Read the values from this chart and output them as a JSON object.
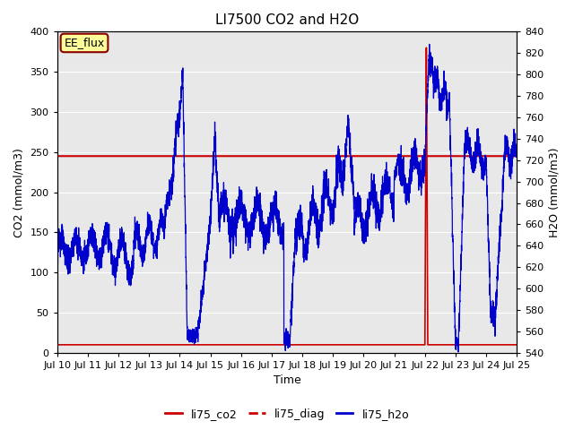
{
  "title": "LI7500 CO2 and H2O",
  "xlabel": "Time",
  "ylabel_left": "CO2 (mmol/m3)",
  "ylabel_right": "H2O (mmol/m3)",
  "ylim_left": [
    0,
    400
  ],
  "ylim_right": [
    540,
    840
  ],
  "xtick_labels": [
    "Jul 10",
    "Jul 11",
    "Jul 12",
    "Jul 13",
    "Jul 14",
    "Jul 15",
    "Jul 16",
    "Jul 17",
    "Jul 18",
    "Jul 19",
    "Jul 20",
    "Jul 21",
    "Jul 22",
    "Jul 23",
    "Jul 24",
    "Jul 25"
  ],
  "yticks_left": [
    0,
    50,
    100,
    150,
    200,
    250,
    300,
    350,
    400
  ],
  "plot_bg_color": "#e8e8e8",
  "grid_color": "white",
  "co2_color": "#cc0000",
  "diag_color": "#cc0000",
  "h2o_color": "#0000cc",
  "annotation_text": "EE_flux",
  "annotation_bg": "#ffff99",
  "annotation_border": "#8b0000",
  "legend_labels": [
    "li75_co2",
    "li75_diag",
    "li75_h2o"
  ],
  "legend_colors": [
    "#cc0000",
    "#cc0000",
    "#0000cc"
  ]
}
